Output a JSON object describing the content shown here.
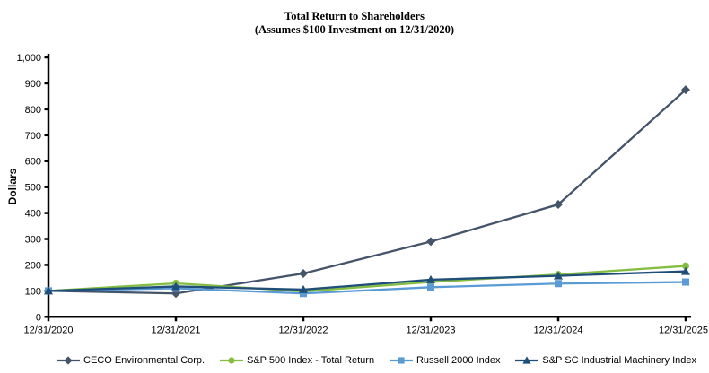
{
  "title": "Total Return to Shareholders",
  "subtitle": "(Assumes $100 Investment on 12/31/2020)",
  "ylabel": "Dollars",
  "chart_data": {
    "type": "line",
    "title": "Total Return to Shareholders",
    "subtitle": "(Assumes $100 Investment on 12/31/2020)",
    "xlabel": "",
    "ylabel": "Dollars",
    "ylim": [
      0,
      1000
    ],
    "ytick_step": 100,
    "grid": false,
    "legend_position": "bottom",
    "categories": [
      "12/31/2020",
      "12/31/2021",
      "12/31/2022",
      "12/31/2023",
      "12/31/2024",
      "12/31/2025"
    ],
    "series": [
      {
        "name": "CECO Environmental Corp.",
        "marker": "diamond",
        "color": "#44546A",
        "values": [
          100,
          90,
          167,
          290,
          433,
          875
        ]
      },
      {
        "name": "S&P 500 Index - Total Return",
        "marker": "circle",
        "color": "#84BD41",
        "values": [
          100,
          129,
          98,
          134,
          163,
          196
        ]
      },
      {
        "name": "Russell 2000 Index",
        "marker": "square",
        "color": "#5B9BD5",
        "values": [
          100,
          110,
          90,
          114,
          128,
          134
        ]
      },
      {
        "name": "S&P SC Industrial Machinery Index",
        "marker": "triangle",
        "color": "#1F4E79",
        "values": [
          100,
          117,
          105,
          143,
          158,
          175
        ]
      }
    ],
    "axis_color": "#000000"
  }
}
